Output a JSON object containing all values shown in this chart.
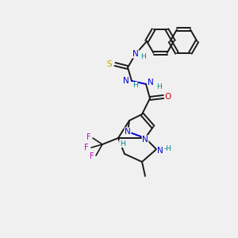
{
  "background_color": "#f0f0f0",
  "bond_color": "#1a1a1a",
  "atom_colors": {
    "N": "#0000cc",
    "O": "#cc0000",
    "S": "#bbaa00",
    "F": "#cc00cc",
    "H": "#008888",
    "C": "#1a1a1a"
  },
  "figsize": [
    3.0,
    3.0
  ],
  "dpi": 100
}
